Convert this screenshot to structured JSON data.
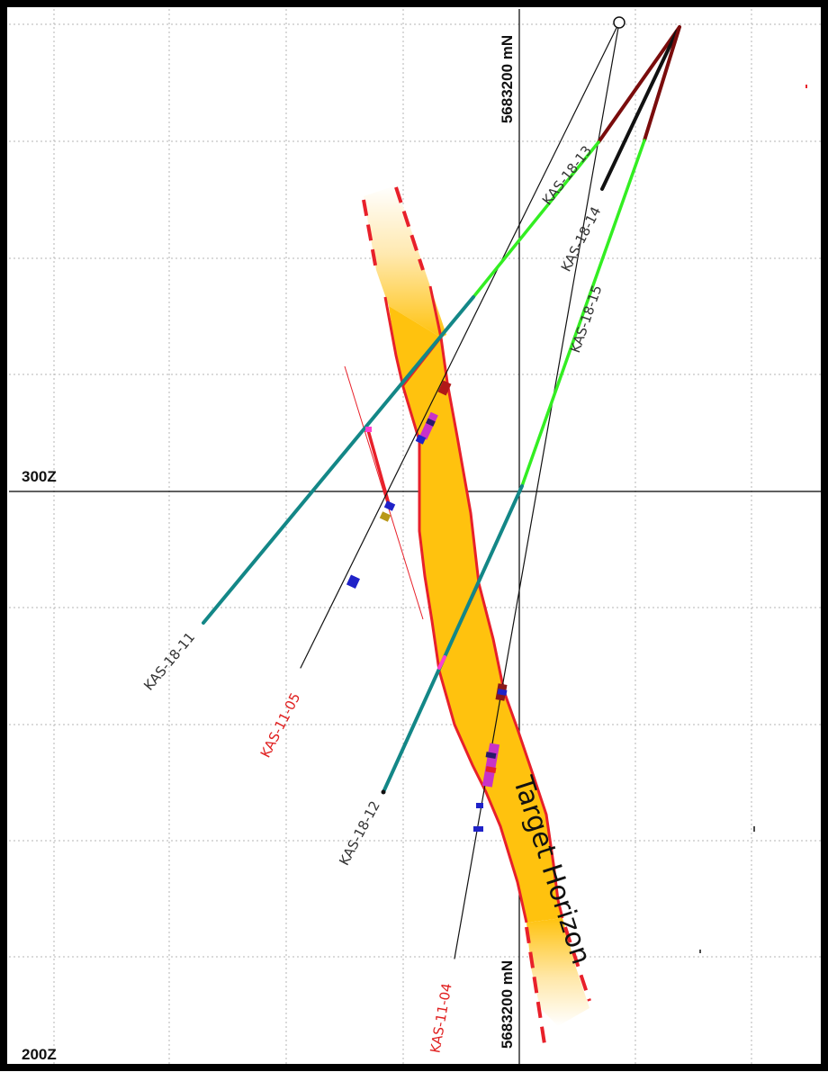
{
  "section": {
    "elevation_labels": [
      "300Z",
      "200Z"
    ],
    "northing_labels": [
      "5683200 mN",
      "5683200 mN"
    ],
    "target_label": "Target Horizon",
    "drill_holes": [
      {
        "id": "KAS-18-11",
        "color": "#333333"
      },
      {
        "id": "KAS-18-12",
        "color": "#333333"
      },
      {
        "id": "KAS-18-13",
        "color": "#333333"
      },
      {
        "id": "KAS-18-14",
        "color": "#333333"
      },
      {
        "id": "KAS-18-15",
        "color": "#333333"
      },
      {
        "id": "KAS-11-04",
        "color": "#e02020"
      },
      {
        "id": "KAS-11-05",
        "color": "#e02020"
      }
    ],
    "colors": {
      "horizon_fill": "#ffc20e",
      "horizon_edge": "#e8202a",
      "trace_green": "#33ee22",
      "trace_teal": "#138787",
      "trace_maroon": "#7a0c0c",
      "grid": "#b0b0b0",
      "frame": "#000000"
    }
  }
}
